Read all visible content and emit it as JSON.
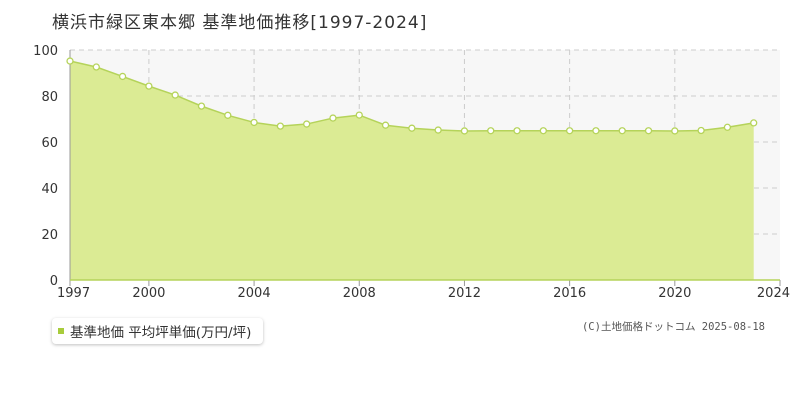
{
  "chart_data": {
    "type": "area",
    "title": "横浜市緑区東本郷 基準地価推移[1997-2024]",
    "x": [
      1997,
      1998,
      1999,
      2000,
      2001,
      2002,
      2003,
      2004,
      2005,
      2006,
      2007,
      2008,
      2009,
      2010,
      2011,
      2012,
      2013,
      2014,
      2015,
      2016,
      2017,
      2018,
      2019,
      2020,
      2021,
      2022,
      2023,
      2024
    ],
    "series": [
      {
        "name": "基準地価 平均坪単価(万円/坪)",
        "values": [
          95.2,
          92.6,
          88.5,
          84.3,
          80.4,
          75.6,
          71.6,
          68.5,
          66.9,
          67.8,
          70.4,
          71.7,
          67.3,
          66.0,
          65.2,
          64.8,
          64.9,
          64.9,
          64.9,
          64.9,
          64.9,
          64.9,
          64.9,
          64.8,
          65.0,
          66.4,
          68.3,
          null
        ]
      }
    ],
    "xlim": [
      1997,
      2024
    ],
    "ylim": [
      0,
      100
    ],
    "y_ticks": [
      0,
      20,
      40,
      60,
      80,
      100
    ],
    "x_tick_labels": [
      "1997",
      "2000",
      "2004",
      "2008",
      "2012",
      "2016",
      "2020",
      "2024"
    ],
    "grid": true,
    "legend_position": "bottom-left",
    "colors": {
      "fill": "#dbeb94",
      "line": "#b5d35a",
      "marker_fill": "#ffffff",
      "marker_stroke": "#b5d35a",
      "legend_swatch": "#a8cc3c",
      "grid": "#cccccc",
      "axis": "#999999",
      "plot_background": "#f7f7f7"
    }
  },
  "credit": "(C)土地価格ドットコム 2025-08-18"
}
